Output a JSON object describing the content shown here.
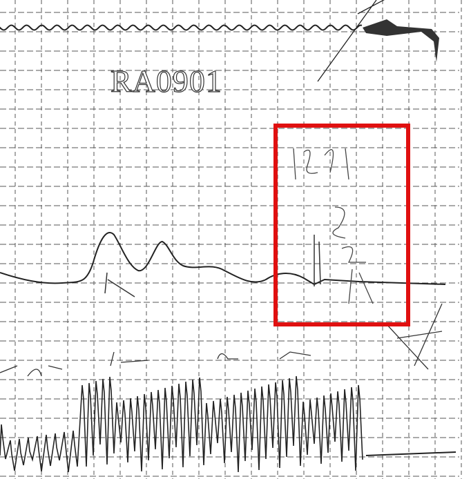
{
  "header": {
    "title": "RA0901"
  }
}
